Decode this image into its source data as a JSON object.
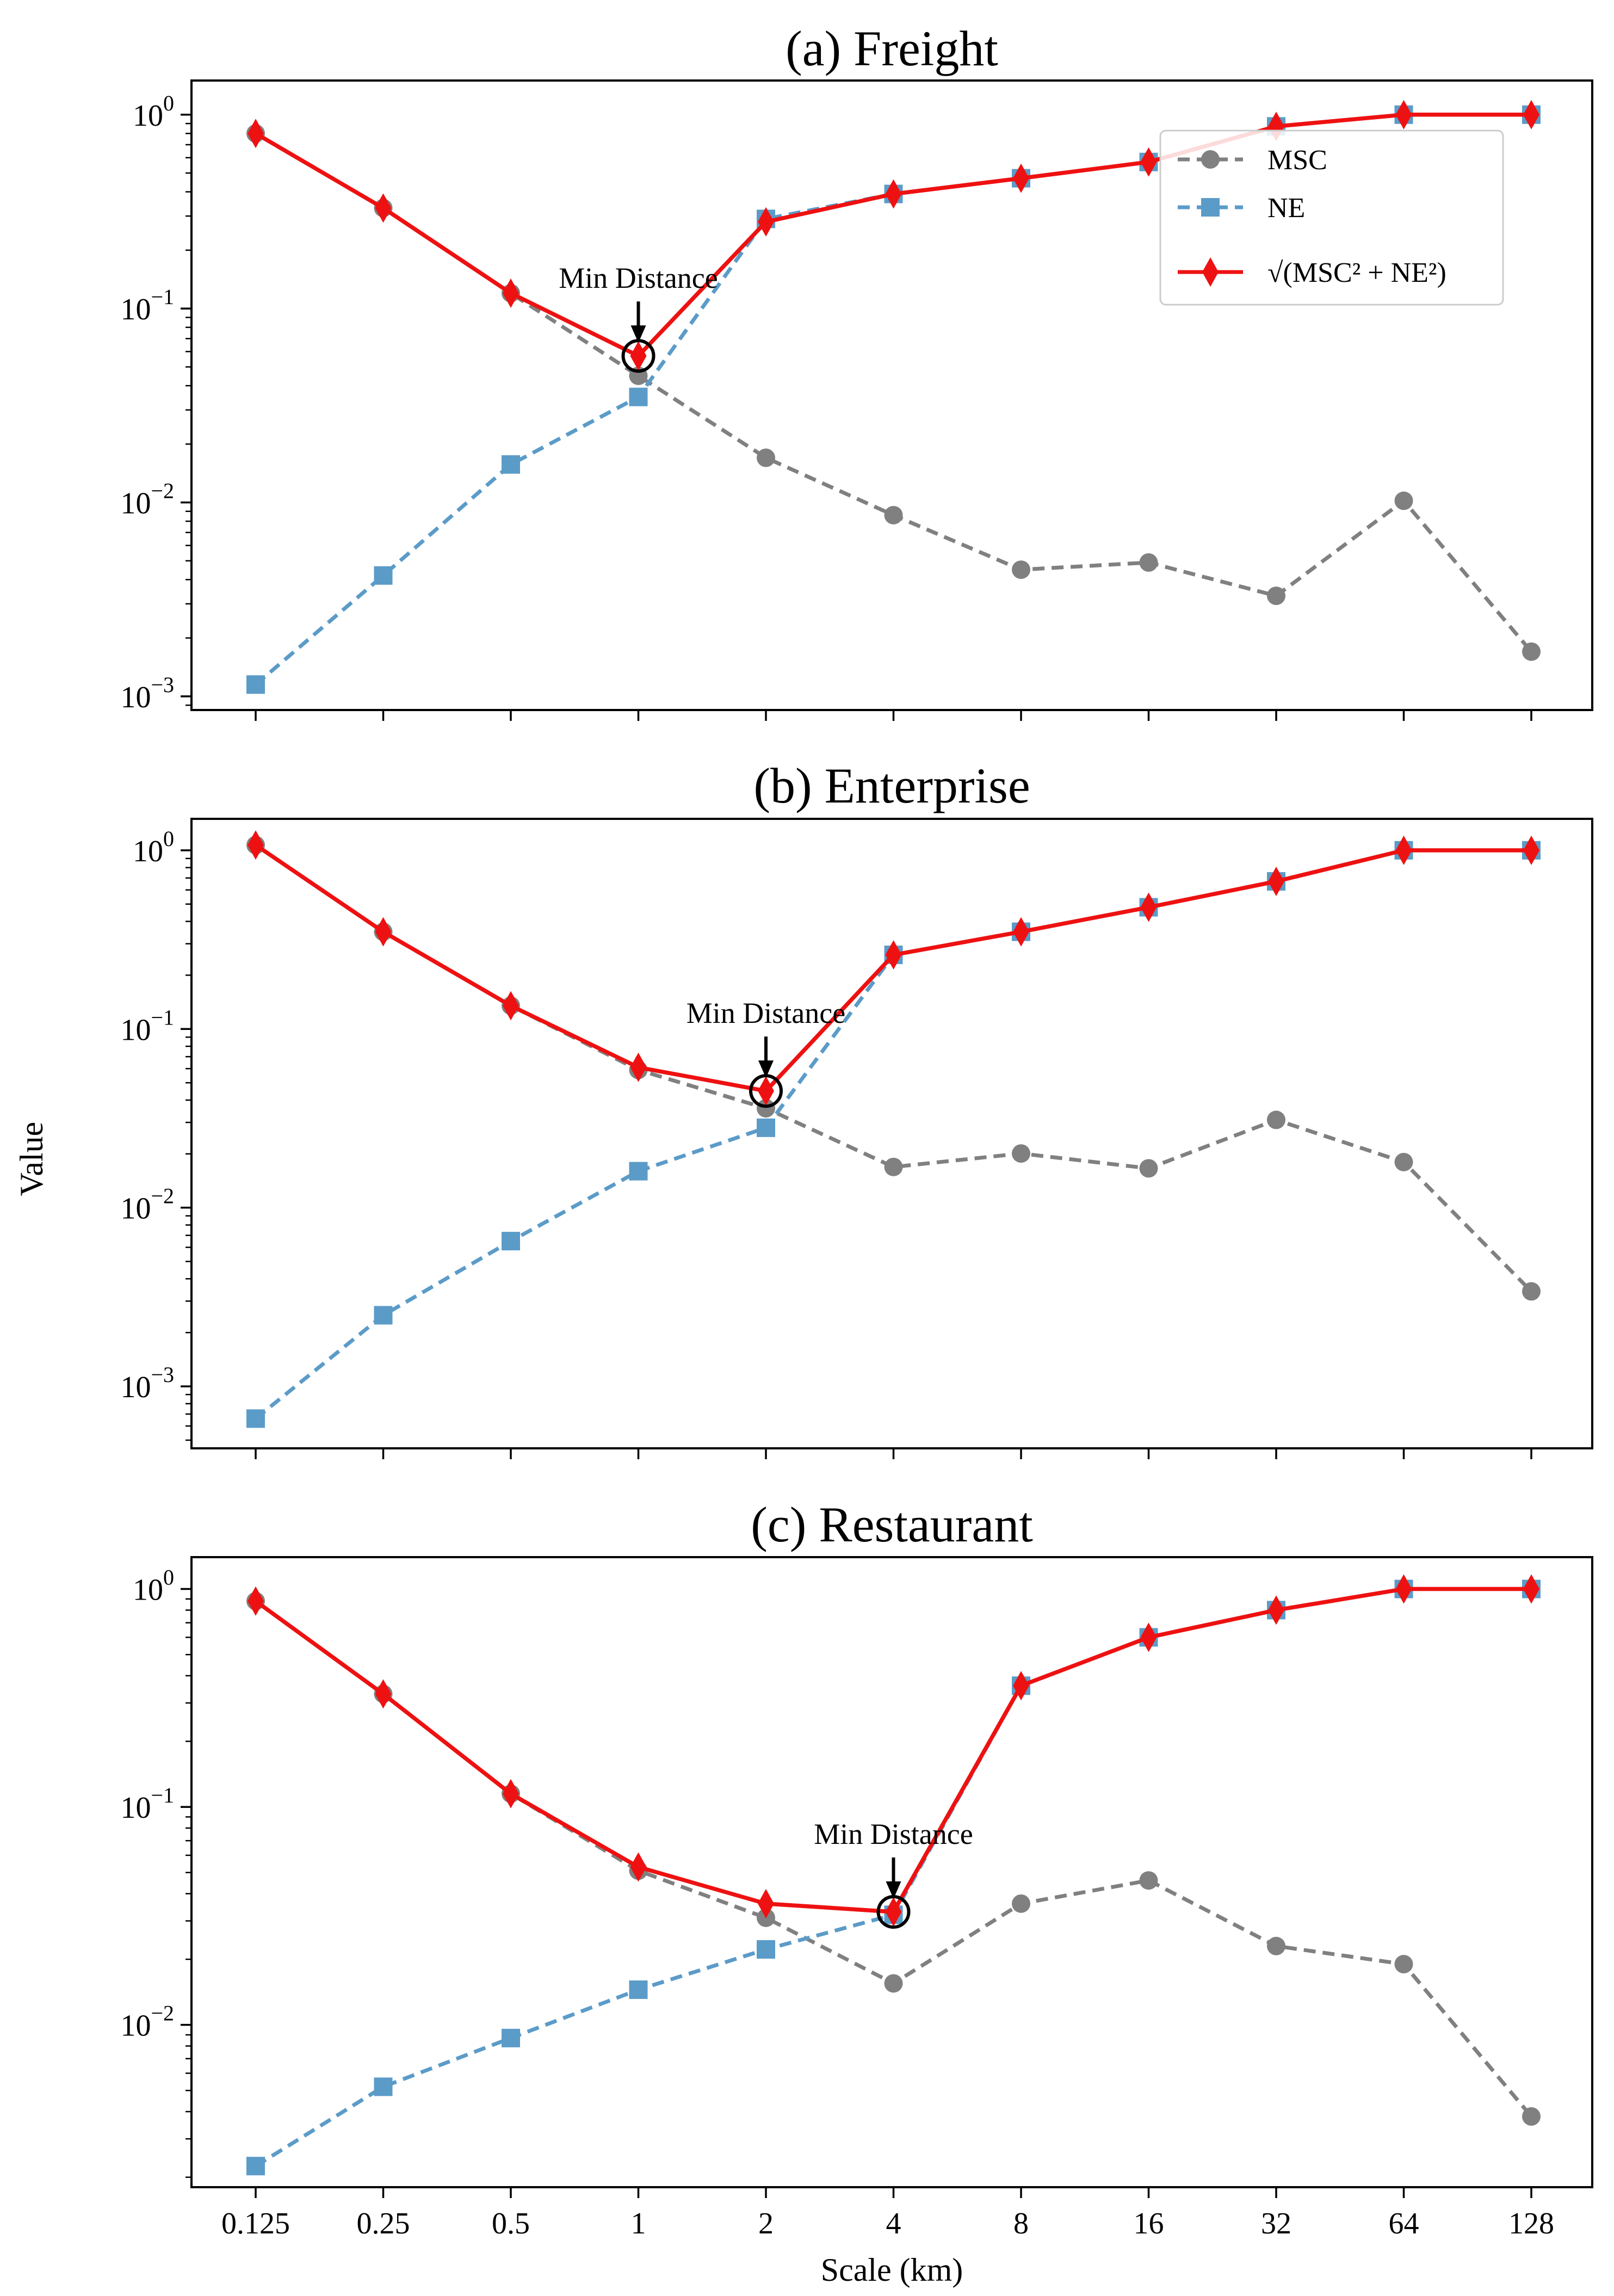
{
  "figure": {
    "ylabel": "Value",
    "xlabel": "Scale (km)"
  },
  "legend": {
    "msc": "MSC",
    "ne": "NE",
    "combined": "√(MSC² + NE²)"
  },
  "colors": {
    "msc": "#808080",
    "ne": "#5b9bc8",
    "combined": "#ee1111"
  },
  "chart_data": [
    {
      "type": "line",
      "title": "(a) Freight",
      "xlabel": "",
      "ylabel": "Value",
      "yscale": "log",
      "ylim": [
        0.00085,
        1.5
      ],
      "categories": [
        "0.125",
        "0.25",
        "0.5",
        "1",
        "2",
        "4",
        "8",
        "16",
        "32",
        "64",
        "128"
      ],
      "series": [
        {
          "name": "MSC",
          "values": [
            0.8,
            0.33,
            0.12,
            0.045,
            0.017,
            0.0086,
            0.0045,
            0.0049,
            0.0033,
            0.0102,
            0.0017
          ]
        },
        {
          "name": "NE",
          "values": [
            0.00115,
            0.0042,
            0.0157,
            0.035,
            0.29,
            0.39,
            0.47,
            0.57,
            0.87,
            1.0,
            1.0
          ]
        },
        {
          "name": "sqrt(MSC^2+NE^2)",
          "values": [
            0.8,
            0.33,
            0.12,
            0.057,
            0.28,
            0.39,
            0.47,
            0.57,
            0.87,
            1.0,
            1.0
          ]
        }
      ],
      "annotation": {
        "text": "Min Distance",
        "category": "1",
        "value": 0.057
      },
      "legend_position": "upper-right"
    },
    {
      "type": "line",
      "title": "(b) Enterprise",
      "xlabel": "",
      "ylabel": "Value",
      "yscale": "log",
      "ylim": [
        0.00045,
        1.5
      ],
      "categories": [
        "0.125",
        "0.25",
        "0.5",
        "1",
        "2",
        "4",
        "8",
        "16",
        "32",
        "64",
        "128"
      ],
      "series": [
        {
          "name": "MSC",
          "values": [
            1.07,
            0.35,
            0.135,
            0.059,
            0.036,
            0.0169,
            0.0201,
            0.0166,
            0.031,
            0.018,
            0.0034
          ]
        },
        {
          "name": "NE",
          "values": [
            0.00066,
            0.0025,
            0.0065,
            0.016,
            0.028,
            0.26,
            0.35,
            0.48,
            0.67,
            1.0,
            1.0
          ]
        },
        {
          "name": "sqrt(MSC^2+NE^2)",
          "values": [
            1.07,
            0.35,
            0.135,
            0.061,
            0.045,
            0.26,
            0.35,
            0.48,
            0.67,
            1.0,
            1.0
          ]
        }
      ],
      "annotation": {
        "text": "Min Distance",
        "category": "2",
        "value": 0.045
      }
    },
    {
      "type": "line",
      "title": "(c) Restaurant",
      "xlabel": "Scale (km)",
      "ylabel": "Value",
      "yscale": "log",
      "ylim": [
        0.0018,
        1.4
      ],
      "categories": [
        "0.125",
        "0.25",
        "0.5",
        "1",
        "2",
        "4",
        "8",
        "16",
        "32",
        "64",
        "128"
      ],
      "series": [
        {
          "name": "MSC",
          "values": [
            0.88,
            0.33,
            0.115,
            0.051,
            0.031,
            0.0155,
            0.036,
            0.046,
            0.023,
            0.019,
            0.0038
          ]
        },
        {
          "name": "NE",
          "values": [
            0.00225,
            0.0052,
            0.0087,
            0.0145,
            0.0222,
            0.032,
            0.36,
            0.6,
            0.8,
            1.0,
            1.0
          ]
        },
        {
          "name": "sqrt(MSC^2+NE^2)",
          "values": [
            0.88,
            0.33,
            0.115,
            0.053,
            0.036,
            0.033,
            0.36,
            0.6,
            0.8,
            1.0,
            1.0
          ]
        }
      ],
      "annotation": {
        "text": "Min Distance",
        "category": "4",
        "value": 0.033
      }
    }
  ]
}
